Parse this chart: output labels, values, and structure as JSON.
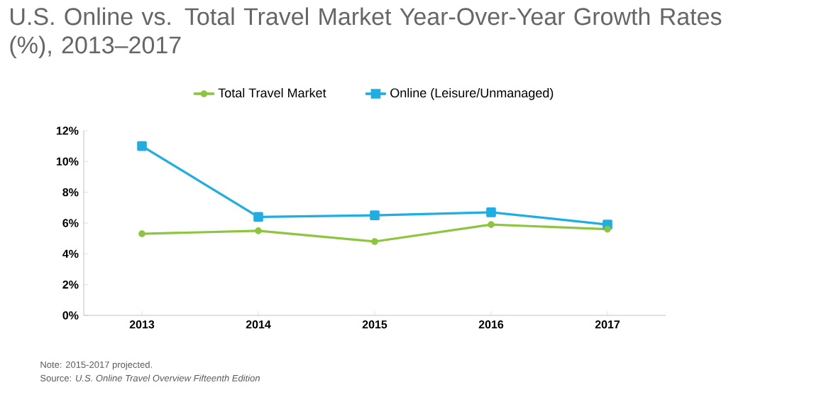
{
  "chart_data": {
    "type": "line",
    "title": "U.S. Online vs. Total Travel Market Year-Over-Year Growth Rates (%), 2013–2017",
    "categories": [
      "2013",
      "2014",
      "2015",
      "2016",
      "2017"
    ],
    "series": [
      {
        "name": "Total Travel Market",
        "color": "#8cc63f",
        "marker": "circle",
        "values": [
          5.3,
          5.5,
          4.8,
          5.9,
          5.6
        ]
      },
      {
        "name": "Online (Leisure/Unmanaged)",
        "color": "#1eaee4",
        "marker": "square",
        "values": [
          11.0,
          6.4,
          6.5,
          6.7,
          5.9
        ]
      }
    ],
    "ylim": [
      0,
      12
    ],
    "yticks": [
      {
        "value": 0,
        "label": "0%"
      },
      {
        "value": 2,
        "label": "2%"
      },
      {
        "value": 4,
        "label": "4%"
      },
      {
        "value": 6,
        "label": "6%"
      },
      {
        "value": 8,
        "label": "8%"
      },
      {
        "value": 10,
        "label": "10%"
      },
      {
        "value": 12,
        "label": "12%"
      }
    ],
    "grid": false,
    "legend": "top",
    "annotations": [
      "Note: 2015-2017 projected.",
      "Source: *U.S. Online Travel Overview Fifteenth Edition*"
    ]
  }
}
